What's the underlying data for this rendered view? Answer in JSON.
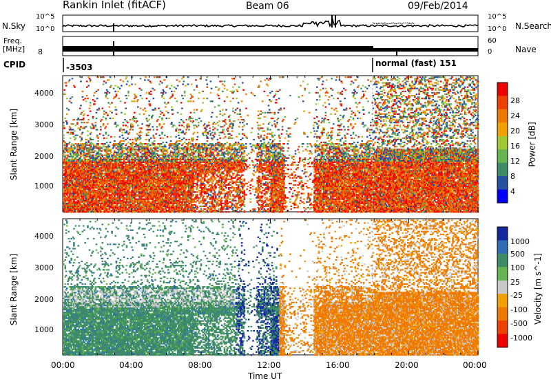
{
  "header": {
    "station": "Rankin Inlet (fitACF)",
    "beam": "Beam 06",
    "date": "09/Feb/2014"
  },
  "noise_panel": {
    "left_label": "N.Sky",
    "right_label": "N.Search",
    "tick_top": "10^5",
    "tick_bottom": "10^0"
  },
  "freq_panel": {
    "label_line1": "Freq.",
    "label_line2": "[MHz]",
    "left_tick": "8",
    "right_label": "Nave",
    "right_tick_top": "60",
    "right_tick_bottom": "0"
  },
  "cpid_panel": {
    "label": "CPID",
    "mode1": "-3503",
    "mode2": "normal (fast) 151"
  },
  "colors": {
    "power_scale": [
      "#0000ff",
      "#2650a0",
      "#3c8c64",
      "#64b450",
      "#a0c832",
      "#f0a000",
      "#f07800",
      "#f04000",
      "#f00000"
    ],
    "velocity_scale": [
      "#1428a0",
      "#2d6eb4",
      "#3c8c64",
      "#64b450",
      "#c8c8c8",
      "#f0a000",
      "#f07800",
      "#f04000",
      "#f00000"
    ]
  },
  "chart_data": [
    {
      "type": "heatmap",
      "name": "power",
      "ylabel": "Slant Range [km]",
      "y_ticks": [
        "1000",
        "2000",
        "3000",
        "4000"
      ],
      "ylim": [
        180,
        4500
      ],
      "xlim": [
        "00:00",
        "24:00"
      ],
      "colorbar_label": "Power [dB]",
      "colorbar_ticks": [
        "4",
        "8",
        "12",
        "16",
        "20",
        "24",
        "28"
      ],
      "colorbar_range": [
        0,
        32
      ]
    },
    {
      "type": "heatmap",
      "name": "velocity",
      "ylabel": "Slant Range [km]",
      "y_ticks": [
        "1000",
        "2000",
        "3000",
        "4000"
      ],
      "ylim": [
        180,
        4500
      ],
      "xlabel": "Time UT",
      "x_ticks": [
        "00:00",
        "04:00",
        "08:00",
        "12:00",
        "16:00",
        "20:00",
        "00:00"
      ],
      "colorbar_label": "Velocity [m s^-1]",
      "colorbar_ticks": [
        "1000",
        "500",
        "100",
        "25",
        "-25",
        "-100",
        "-500",
        "-1000"
      ]
    }
  ]
}
